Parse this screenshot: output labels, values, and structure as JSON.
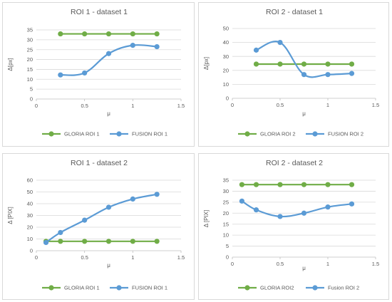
{
  "colors": {
    "gloria": "#70ad47",
    "fusion": "#5b9bd5",
    "grid": "#d9d9d9",
    "axis": "#bfbfbf"
  },
  "chart_data": [
    {
      "type": "line",
      "title": "ROI 1 - dataset 1",
      "xlabel": "μ",
      "ylabel": "Δ[px]",
      "xlim": [
        0,
        1.5
      ],
      "ylim": [
        0,
        35
      ],
      "xticks": [
        "0",
        "0.5",
        "1",
        "1.5"
      ],
      "yticks": [
        "0",
        "5",
        "10",
        "15",
        "20",
        "25",
        "30",
        "35"
      ],
      "grid": true,
      "legend": "bottom",
      "series": [
        {
          "name": "GLORIA ROI 1",
          "x": [
            0.25,
            0.5,
            0.75,
            1,
            1.25
          ],
          "y": [
            33,
            33,
            33,
            33,
            33
          ]
        },
        {
          "name": "FUSION ROI 1",
          "x": [
            0.25,
            0.5,
            0.75,
            1,
            1.25
          ],
          "y": [
            12.2,
            13.2,
            23,
            27.2,
            26.5
          ]
        }
      ]
    },
    {
      "type": "line",
      "title": "ROI 2 - dataset 1",
      "xlabel": "μ",
      "ylabel": "Δ[px]",
      "xlim": [
        0,
        1.5
      ],
      "ylim": [
        0,
        50
      ],
      "xticks": [
        "0",
        "0.5",
        "1",
        "1.5"
      ],
      "yticks": [
        "0",
        "10",
        "20",
        "30",
        "40",
        "50"
      ],
      "grid": true,
      "legend": "bottom",
      "series": [
        {
          "name": "GLORIA ROI 2",
          "x": [
            0.25,
            0.5,
            0.75,
            1,
            1.25
          ],
          "y": [
            24.5,
            24.5,
            24.5,
            24.5,
            24.5
          ]
        },
        {
          "name": "FUSION ROI 2",
          "x": [
            0.25,
            0.5,
            0.75,
            1,
            1.25
          ],
          "y": [
            34.5,
            40,
            17,
            17,
            17.8
          ]
        }
      ]
    },
    {
      "type": "line",
      "title": "ROI 1 - dataset 2",
      "xlabel": "μ",
      "ylabel": "Δ [PIX]",
      "xlim": [
        0,
        1.5
      ],
      "ylim": [
        0,
        60
      ],
      "xticks": [
        "0",
        "0.5",
        "1",
        "1.5"
      ],
      "yticks": [
        "0",
        "10",
        "20",
        "30",
        "40",
        "50",
        "60"
      ],
      "grid": true,
      "legend": "bottom",
      "series": [
        {
          "name": "GLORIA ROI 1",
          "x": [
            0.1,
            0.25,
            0.5,
            0.75,
            1,
            1.25
          ],
          "y": [
            8,
            8,
            8,
            8,
            8,
            8
          ]
        },
        {
          "name": "FUSION ROI 1",
          "x": [
            0.1,
            0.25,
            0.5,
            0.75,
            1,
            1.25
          ],
          "y": [
            7,
            15.5,
            26,
            37,
            44,
            48
          ]
        }
      ]
    },
    {
      "type": "line",
      "title": "ROI 2 - dataset 2",
      "xlabel": "μ",
      "ylabel": "Δ [PIX]",
      "xlim": [
        0,
        1.5
      ],
      "ylim": [
        0,
        35
      ],
      "xticks": [
        "0",
        "0.5",
        "1",
        "1.5"
      ],
      "yticks": [
        "0",
        "5",
        "10",
        "15",
        "20",
        "25",
        "30",
        "35"
      ],
      "grid": true,
      "legend": "bottom",
      "series": [
        {
          "name": "GLORIA ROI2",
          "x": [
            0.1,
            0.25,
            0.5,
            0.75,
            1,
            1.25
          ],
          "y": [
            33,
            33,
            33,
            33,
            33,
            33
          ]
        },
        {
          "name": "Fusion ROI 2",
          "x": [
            0.1,
            0.25,
            0.5,
            0.75,
            1,
            1.25
          ],
          "y": [
            25.5,
            21.5,
            18.5,
            20,
            22.8,
            24.2
          ]
        }
      ]
    }
  ]
}
